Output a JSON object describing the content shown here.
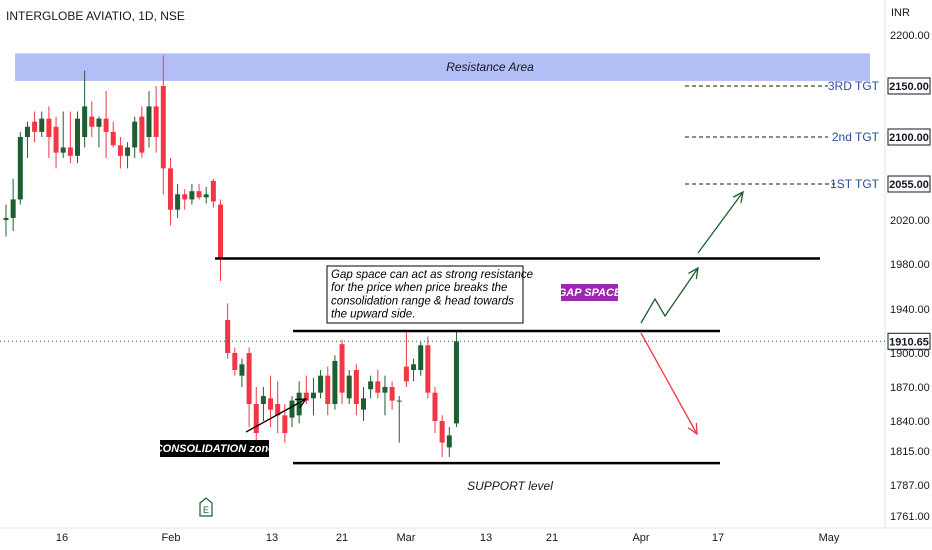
{
  "header": {
    "symbol": "INTERGLOBE AVIATIO, 1D, NSE"
  },
  "colors": {
    "up": "#1e5e30",
    "down": "#f23645",
    "resistance_fill": "#aab8f5",
    "gap_label_bg": "#9c27b0",
    "target_text": "#2a4b9b",
    "arrow_up": "#1e5e30",
    "arrow_down": "#f23645",
    "last_price_line": "#1e5e30"
  },
  "chart_data": {
    "type": "candlestick",
    "currency": "INR",
    "y_axis_ticks": [
      "2200.00",
      "2150.00",
      "2100.00",
      "2055.00",
      "2020.00",
      "1980.00",
      "1940.00",
      "1900.00",
      "1870.00",
      "1840.00",
      "1815.00",
      "1787.00",
      "1761.00"
    ],
    "x_axis_ticks": [
      "16",
      "Feb",
      "13",
      "21",
      "Mar",
      "13",
      "21",
      "Apr",
      "17",
      "May"
    ],
    "last_price": "1910.65",
    "price_tags": [
      "2150.00",
      "2100.00",
      "2055.00",
      "1910.65"
    ],
    "candles": [
      {
        "o": 2020,
        "h": 2035,
        "l": 2005,
        "c": 2022
      },
      {
        "o": 2022,
        "h": 2060,
        "l": 2010,
        "c": 2040
      },
      {
        "o": 2040,
        "h": 2105,
        "l": 2035,
        "c": 2100
      },
      {
        "o": 2100,
        "h": 2115,
        "l": 2080,
        "c": 2110
      },
      {
        "o": 2115,
        "h": 2125,
        "l": 2095,
        "c": 2105
      },
      {
        "o": 2105,
        "h": 2125,
        "l": 2100,
        "c": 2118
      },
      {
        "o": 2118,
        "h": 2130,
        "l": 2080,
        "c": 2100
      },
      {
        "o": 2110,
        "h": 2120,
        "l": 2070,
        "c": 2085
      },
      {
        "o": 2085,
        "h": 2125,
        "l": 2080,
        "c": 2090
      },
      {
        "o": 2090,
        "h": 2125,
        "l": 2075,
        "c": 2082
      },
      {
        "o": 2082,
        "h": 2125,
        "l": 2075,
        "c": 2118
      },
      {
        "o": 2100,
        "h": 2165,
        "l": 2090,
        "c": 2130
      },
      {
        "o": 2120,
        "h": 2135,
        "l": 2100,
        "c": 2110
      },
      {
        "o": 2110,
        "h": 2120,
        "l": 2090,
        "c": 2118
      },
      {
        "o": 2118,
        "h": 2145,
        "l": 2080,
        "c": 2105
      },
      {
        "o": 2105,
        "h": 2115,
        "l": 2090,
        "c": 2092
      },
      {
        "o": 2092,
        "h": 2100,
        "l": 2070,
        "c": 2082
      },
      {
        "o": 2082,
        "h": 2095,
        "l": 2070,
        "c": 2090
      },
      {
        "o": 2090,
        "h": 2120,
        "l": 2080,
        "c": 2115
      },
      {
        "o": 2120,
        "h": 2130,
        "l": 2080,
        "c": 2085
      },
      {
        "o": 2100,
        "h": 2145,
        "l": 2090,
        "c": 2130
      },
      {
        "o": 2130,
        "h": 2150,
        "l": 2085,
        "c": 2100
      },
      {
        "o": 2150,
        "h": 2180,
        "l": 2045,
        "c": 2070
      },
      {
        "o": 2070,
        "h": 2080,
        "l": 2015,
        "c": 2030
      },
      {
        "o": 2030,
        "h": 2055,
        "l": 2022,
        "c": 2045
      },
      {
        "o": 2045,
        "h": 2050,
        "l": 2030,
        "c": 2040
      },
      {
        "o": 2040,
        "h": 2055,
        "l": 2035,
        "c": 2048
      },
      {
        "o": 2048,
        "h": 2055,
        "l": 2040,
        "c": 2042
      },
      {
        "o": 2042,
        "h": 2052,
        "l": 2036,
        "c": 2045
      },
      {
        "o": 2058,
        "h": 2060,
        "l": 2032,
        "c": 2038
      },
      {
        "o": 2035,
        "h": 2040,
        "l": 1965,
        "c": 1985
      },
      {
        "o": 1930,
        "h": 1945,
        "l": 1895,
        "c": 1900
      },
      {
        "o": 1900,
        "h": 1905,
        "l": 1880,
        "c": 1885
      },
      {
        "o": 1880,
        "h": 1895,
        "l": 1870,
        "c": 1890
      },
      {
        "o": 1900,
        "h": 1905,
        "l": 1835,
        "c": 1855
      },
      {
        "o": 1855,
        "h": 1870,
        "l": 1822,
        "c": 1830
      },
      {
        "o": 1855,
        "h": 1870,
        "l": 1840,
        "c": 1862
      },
      {
        "o": 1860,
        "h": 1880,
        "l": 1835,
        "c": 1850
      },
      {
        "o": 1855,
        "h": 1875,
        "l": 1830,
        "c": 1845
      },
      {
        "o": 1845,
        "h": 1855,
        "l": 1822,
        "c": 1830
      },
      {
        "o": 1843,
        "h": 1862,
        "l": 1835,
        "c": 1858
      },
      {
        "o": 1845,
        "h": 1875,
        "l": 1838,
        "c": 1865
      },
      {
        "o": 1865,
        "h": 1880,
        "l": 1855,
        "c": 1858
      },
      {
        "o": 1860,
        "h": 1878,
        "l": 1845,
        "c": 1865
      },
      {
        "o": 1865,
        "h": 1885,
        "l": 1860,
        "c": 1880
      },
      {
        "o": 1880,
        "h": 1888,
        "l": 1845,
        "c": 1855
      },
      {
        "o": 1855,
        "h": 1898,
        "l": 1850,
        "c": 1893
      },
      {
        "o": 1908,
        "h": 1912,
        "l": 1855,
        "c": 1865
      },
      {
        "o": 1860,
        "h": 1885,
        "l": 1855,
        "c": 1880
      },
      {
        "o": 1885,
        "h": 1890,
        "l": 1845,
        "c": 1855
      },
      {
        "o": 1850,
        "h": 1870,
        "l": 1840,
        "c": 1860
      },
      {
        "o": 1868,
        "h": 1880,
        "l": 1860,
        "c": 1875
      },
      {
        "o": 1875,
        "h": 1885,
        "l": 1860,
        "c": 1865
      },
      {
        "o": 1865,
        "h": 1880,
        "l": 1845,
        "c": 1870
      },
      {
        "o": 1870,
        "h": 1875,
        "l": 1850,
        "c": 1858
      },
      {
        "o": 1858,
        "h": 1862,
        "l": 1822,
        "c": 1858
      },
      {
        "o": 1888,
        "h": 1920,
        "l": 1870,
        "c": 1875
      },
      {
        "o": 1885,
        "h": 1895,
        "l": 1875,
        "c": 1890
      },
      {
        "o": 1885,
        "h": 1910,
        "l": 1880,
        "c": 1907
      },
      {
        "o": 1907,
        "h": 1915,
        "l": 1860,
        "c": 1865
      },
      {
        "o": 1865,
        "h": 1870,
        "l": 1830,
        "c": 1840
      },
      {
        "o": 1840,
        "h": 1845,
        "l": 1810,
        "c": 1822
      },
      {
        "o": 1818,
        "h": 1835,
        "l": 1810,
        "c": 1828
      },
      {
        "o": 1838,
        "h": 1920,
        "l": 1835,
        "c": 1910.65
      }
    ]
  },
  "annotations": {
    "resistance_area": "Resistance Area",
    "targets": [
      "3RD TGT",
      "2nd TGT",
      "1ST TGT"
    ],
    "note_lines": [
      "Gap space can act as strong resistance",
      "for the price when price breaks the",
      "consolidation range & head towards",
      "the upward side."
    ],
    "gap_space": "GAP SPACE",
    "consolidation": "CONSOLIDATION zone",
    "support": "SUPPORT level"
  },
  "icons": {
    "earnings_marker": "earnings-icon",
    "earnings_letter": "E"
  }
}
